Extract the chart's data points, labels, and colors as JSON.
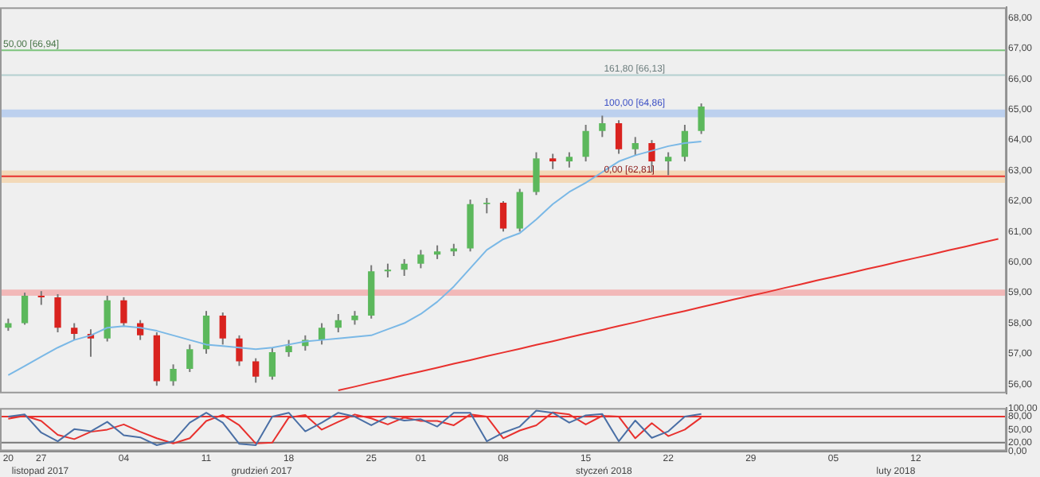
{
  "chart_data": [
    {
      "type": "candlestick",
      "categories": [
        "20",
        null,
        "27",
        null,
        null,
        null,
        null,
        "04",
        null,
        null,
        null,
        null,
        "11",
        null,
        null,
        null,
        null,
        "18",
        null,
        null,
        null,
        null,
        "25",
        null,
        null,
        "01",
        null,
        null,
        null,
        null,
        "08",
        null,
        null,
        null,
        null,
        "15",
        null,
        null,
        null,
        null,
        "22",
        null,
        null,
        null,
        null,
        "29",
        null,
        null,
        null,
        null,
        "05",
        null,
        null,
        null,
        null,
        "12",
        null,
        null,
        null,
        null,
        null
      ],
      "ohlc": [
        [
          57.85,
          58.15,
          57.75,
          58.0
        ],
        [
          58.0,
          59.0,
          57.95,
          58.9
        ],
        [
          58.9,
          59.05,
          58.6,
          58.85
        ],
        [
          58.85,
          58.95,
          57.7,
          57.85
        ],
        [
          57.85,
          58.0,
          57.45,
          57.65
        ],
        [
          57.65,
          57.8,
          56.9,
          57.5
        ],
        [
          57.5,
          58.9,
          57.4,
          58.75
        ],
        [
          58.75,
          58.85,
          57.9,
          58.0
        ],
        [
          58.0,
          58.1,
          57.45,
          57.6
        ],
        [
          57.6,
          57.7,
          55.95,
          56.1
        ],
        [
          56.1,
          56.65,
          55.95,
          56.5
        ],
        [
          56.5,
          57.3,
          56.4,
          57.15
        ],
        [
          57.15,
          58.4,
          57.0,
          58.25
        ],
        [
          58.25,
          58.35,
          57.3,
          57.5
        ],
        [
          57.5,
          57.6,
          56.6,
          56.75
        ],
        [
          56.75,
          56.85,
          56.05,
          56.25
        ],
        [
          56.25,
          57.2,
          56.15,
          57.05
        ],
        [
          57.05,
          57.45,
          56.9,
          57.25
        ],
        [
          57.25,
          57.6,
          57.1,
          57.45
        ],
        [
          57.45,
          58.0,
          57.3,
          57.85
        ],
        [
          57.85,
          58.3,
          57.7,
          58.1
        ],
        [
          58.1,
          58.4,
          57.95,
          58.25
        ],
        [
          58.25,
          59.9,
          58.15,
          59.7
        ],
        [
          59.7,
          59.95,
          59.5,
          59.75
        ],
        [
          59.75,
          60.1,
          59.55,
          59.95
        ],
        [
          59.95,
          60.4,
          59.8,
          60.25
        ],
        [
          60.25,
          60.55,
          60.1,
          60.35
        ],
        [
          60.35,
          60.6,
          60.2,
          60.45
        ],
        [
          60.45,
          62.05,
          60.35,
          61.9
        ],
        [
          61.9,
          62.1,
          61.6,
          61.95
        ],
        [
          61.95,
          62.0,
          61.0,
          61.1
        ],
        [
          61.1,
          62.4,
          61.0,
          62.3
        ],
        [
          62.3,
          63.6,
          62.2,
          63.4
        ],
        [
          63.4,
          63.55,
          63.05,
          63.3
        ],
        [
          63.3,
          63.6,
          63.1,
          63.45
        ],
        [
          63.45,
          64.5,
          63.3,
          64.3
        ],
        [
          64.3,
          64.8,
          64.1,
          64.55
        ],
        [
          64.55,
          64.65,
          63.55,
          63.7
        ],
        [
          63.7,
          64.1,
          63.5,
          63.9
        ],
        [
          63.9,
          64.0,
          62.95,
          63.3
        ],
        [
          63.3,
          63.6,
          62.85,
          63.45
        ],
        [
          63.45,
          64.5,
          63.3,
          64.3
        ],
        [
          64.3,
          65.2,
          64.2,
          65.1
        ],
        null,
        null,
        null,
        null,
        null,
        null,
        null,
        null,
        null,
        null,
        null,
        null,
        null,
        null,
        null,
        null,
        null,
        null
      ],
      "colors": [
        "#5cb85c",
        "#5cb85c",
        "#d9231f",
        "#d9231f",
        "#d9231f",
        "#d9231f",
        "#5cb85c",
        "#d9231f",
        "#d9231f",
        "#d9231f",
        "#5cb85c",
        "#5cb85c",
        "#5cb85c",
        "#d9231f",
        "#d9231f",
        "#d9231f",
        "#5cb85c",
        "#5cb85c",
        "#5cb85c",
        "#5cb85c",
        "#5cb85c",
        "#5cb85c",
        "#5cb85c",
        "#5cb85c",
        "#5cb85c",
        "#5cb85c",
        "#5cb85c",
        "#5cb85c",
        "#5cb85c",
        "#5cb85c",
        "#d9231f",
        "#5cb85c",
        "#5cb85c",
        "#d9231f",
        "#5cb85c",
        "#5cb85c",
        "#5cb85c",
        "#d9231f",
        "#5cb85c",
        "#d9231f",
        "#5cb85c",
        "#5cb85c",
        "#5cb85c",
        null,
        null,
        null,
        null,
        null,
        null,
        null,
        null,
        null,
        null,
        null,
        null,
        null,
        null,
        null,
        null,
        null,
        null
      ],
      "series": [
        {
          "type": "line",
          "color": "#7ab8e6",
          "values": [
            56.3,
            56.6,
            56.9,
            57.2,
            57.45,
            57.6,
            57.85,
            57.9,
            57.85,
            57.75,
            57.6,
            57.45,
            57.3,
            57.25,
            57.2,
            57.15,
            57.2,
            57.3,
            57.4,
            57.45,
            57.5,
            57.55,
            57.6,
            57.8,
            58.0,
            58.3,
            58.7,
            59.2,
            59.8,
            60.4,
            60.75,
            60.95,
            61.4,
            61.9,
            62.3,
            62.6,
            62.95,
            63.3,
            63.5,
            63.65,
            63.8,
            63.9,
            63.95,
            null,
            null,
            null,
            null,
            null,
            null,
            null,
            null,
            null,
            null,
            null,
            null,
            null,
            null,
            null,
            null,
            null,
            null
          ]
        },
        {
          "type": "line",
          "color": "#e8312e",
          "values": [
            null,
            null,
            null,
            null,
            null,
            null,
            null,
            null,
            null,
            null,
            null,
            null,
            null,
            null,
            null,
            null,
            null,
            null,
            null,
            null,
            55.8,
            55.92,
            56.05,
            56.17,
            56.3,
            56.42,
            56.54,
            56.67,
            56.79,
            56.92,
            57.04,
            57.16,
            57.29,
            57.41,
            57.54,
            57.66,
            57.78,
            57.91,
            58.03,
            58.16,
            58.28,
            58.4,
            58.53,
            58.65,
            58.78,
            58.9,
            59.02,
            59.15,
            59.27,
            59.4,
            59.52,
            59.64,
            59.77,
            59.89,
            60.02,
            60.14,
            60.26,
            60.39,
            60.51,
            60.64,
            60.76
          ]
        }
      ],
      "ylim": [
        55.7,
        68.35
      ],
      "yticks": [
        {
          "value": 56,
          "label": "56,00"
        },
        {
          "value": 57,
          "label": "57,00"
        },
        {
          "value": 58,
          "label": "58,00"
        },
        {
          "value": 59,
          "label": "59,00"
        },
        {
          "value": 60,
          "label": "60,00"
        },
        {
          "value": 61,
          "label": "61,00"
        },
        {
          "value": 62,
          "label": "62,00"
        },
        {
          "value": 63,
          "label": "63,00"
        },
        {
          "value": 64,
          "label": "64,00"
        },
        {
          "value": 65,
          "label": "65,00"
        },
        {
          "value": 66,
          "label": "66,00"
        },
        {
          "value": 67,
          "label": "67,00"
        },
        {
          "value": 68,
          "label": "68,00"
        }
      ],
      "ref_lines": [
        {
          "axis": "y",
          "value": 66.94,
          "label": "50,00 [66,94]",
          "color": "#7cc47c"
        },
        {
          "axis": "y",
          "value": 66.13,
          "label": "161,80 [66,13]",
          "color": "#b4d0d0"
        },
        {
          "axis": "y",
          "value": 62.81,
          "label": "0,00 [62,81]",
          "color": "#e8312e"
        }
      ],
      "bands": [
        {
          "axis": "y",
          "from": 62.6,
          "to": 63.0,
          "color": "#f3d9b8"
        },
        {
          "axis": "y",
          "from": 64.75,
          "to": 65.0,
          "label": "100,00 [64,86]",
          "color": "#bcd0ee"
        },
        {
          "axis": "y",
          "from": 58.9,
          "to": 59.1,
          "color": "#f2b8b8"
        }
      ],
      "tick_labels": "y"
    },
    {
      "type": "line",
      "categories": [
        "20",
        null,
        "27",
        null,
        null,
        null,
        null,
        "04",
        null,
        null,
        null,
        null,
        "11",
        null,
        null,
        null,
        null,
        "18",
        null,
        null,
        null,
        null,
        "25",
        null,
        null,
        "01",
        null,
        null,
        null,
        null,
        "08",
        null,
        null,
        null,
        null,
        "15",
        null,
        null,
        null,
        null,
        "22",
        null,
        null,
        null,
        null,
        "29",
        null,
        null,
        null,
        null,
        "05",
        null,
        null,
        null,
        null,
        "12",
        null,
        null,
        null,
        null,
        null
      ],
      "series": [
        {
          "color": "#4a6fa5",
          "values": [
            80,
            85,
            43,
            23,
            51,
            46,
            68,
            37,
            32,
            14,
            23,
            66,
            89,
            66,
            17,
            14,
            80,
            89,
            46,
            66,
            89,
            80,
            60,
            80,
            71,
            74,
            57,
            89,
            89,
            23,
            43,
            57,
            94,
            89,
            66,
            83,
            86,
            23,
            71,
            31,
            46,
            80,
            86,
            null,
            null,
            null,
            null,
            null,
            null,
            null,
            null,
            null,
            null,
            null,
            null,
            null,
            null,
            null,
            null,
            null,
            null
          ]
        },
        {
          "color": "#e8312e",
          "values": [
            75,
            82,
            70,
            38,
            28,
            45,
            50,
            62,
            45,
            30,
            18,
            30,
            70,
            84,
            60,
            18,
            20,
            78,
            84,
            50,
            68,
            85,
            76,
            62,
            78,
            70,
            70,
            60,
            85,
            80,
            30,
            48,
            60,
            90,
            85,
            62,
            82,
            80,
            30,
            65,
            35,
            50,
            78,
            null,
            null,
            null,
            null,
            null,
            null,
            null,
            null,
            null,
            null,
            null,
            null,
            null,
            null,
            null,
            null,
            null,
            null
          ]
        }
      ],
      "ylim": [
        0,
        100
      ],
      "yticks": [
        {
          "value": 0,
          "label": "0,00"
        },
        {
          "value": 20,
          "label": "20,00"
        },
        {
          "value": 50,
          "label": "50,00"
        },
        {
          "value": 80,
          "label": "80,00"
        },
        {
          "value": 100,
          "label": "100,00"
        }
      ],
      "ref_lines": [
        {
          "axis": "y",
          "value": 80,
          "color": "#e8312e"
        },
        {
          "axis": "y",
          "value": 20,
          "color": "#777777"
        }
      ],
      "annotations": [
        "listopad 2017",
        "grudzień 2017",
        "styczeń 2018",
        "luty 2018"
      ]
    }
  ]
}
